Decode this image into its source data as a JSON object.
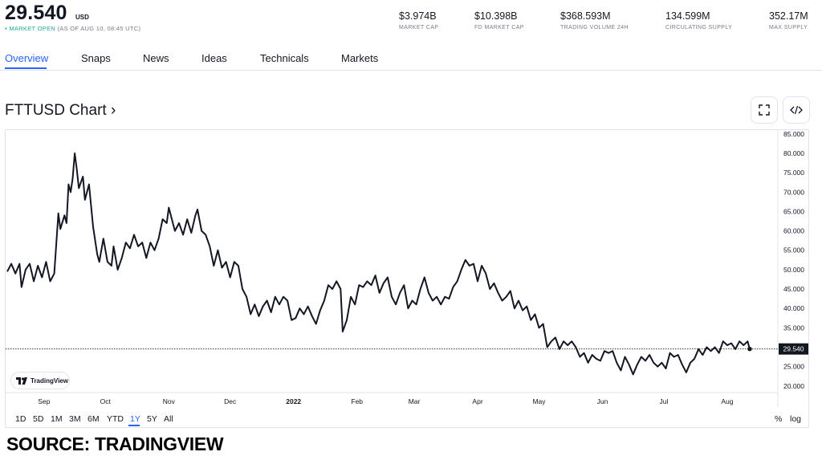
{
  "header": {
    "price": "29.540",
    "unit": "USD",
    "status_dot": "•",
    "status_open": "MARKET OPEN",
    "status_time": "(AS OF AUG 10, 08:45 UTC)",
    "stats": [
      {
        "value": "$3.974B",
        "label": "MARKET CAP"
      },
      {
        "value": "$10.398B",
        "label": "FD MARKET CAP"
      },
      {
        "value": "$368.593M",
        "label": "TRADING VOLUME 24H"
      },
      {
        "value": "134.599M",
        "label": "CIRCULATING SUPPLY"
      },
      {
        "value": "352.17M",
        "label": "MAX SUPPLY"
      }
    ]
  },
  "tabs": [
    "Overview",
    "Snaps",
    "News",
    "Ideas",
    "Technicals",
    "Markets"
  ],
  "active_tab": "Overview",
  "chart_title": "FTTUSD Chart ›",
  "toolbar": {
    "fullscreen_icon": "fullscreen-icon",
    "embed_icon": "code-icon"
  },
  "logo_text": "TradingView",
  "ranges": [
    "1D",
    "5D",
    "1M",
    "3M",
    "6M",
    "YTD",
    "1Y",
    "5Y",
    "All"
  ],
  "active_range": "1Y",
  "scale_buttons": {
    "percent": "%",
    "log": "log"
  },
  "source": "SOURCE: TRADINGVIEW",
  "colors": {
    "accent": "#2962ff",
    "line": "#131722",
    "open": "#22ab94",
    "price_tag_bg": "#131722"
  },
  "chart_data": {
    "type": "line",
    "title": "",
    "xlabel": "",
    "ylabel": "",
    "ylim": [
      18.5,
      86
    ],
    "grid": false,
    "y_ticks": [
      "85.000",
      "80.000",
      "75.000",
      "70.000",
      "65.000",
      "60.000",
      "55.000",
      "50.000",
      "45.000",
      "40.000",
      "35.000",
      "30.000",
      "25.000",
      "20.000"
    ],
    "x_labels": [
      {
        "label": "Sep",
        "day": 18
      },
      {
        "label": "Oct",
        "day": 48
      },
      {
        "label": "Nov",
        "day": 79
      },
      {
        "label": "Dec",
        "day": 109
      },
      {
        "label": "2022",
        "day": 140,
        "bold": true
      },
      {
        "label": "Feb",
        "day": 171
      },
      {
        "label": "Mar",
        "day": 199
      },
      {
        "label": "Apr",
        "day": 230
      },
      {
        "label": "May",
        "day": 260
      },
      {
        "label": "Jun",
        "day": 291
      },
      {
        "label": "Jul",
        "day": 321
      },
      {
        "label": "Aug",
        "day": 352
      }
    ],
    "last_price": 29.54,
    "last_price_label": "29.540",
    "series": [
      {
        "values": [
          [
            0,
            49.5
          ],
          [
            2,
            51.5
          ],
          [
            4,
            49.0
          ],
          [
            6,
            51.5
          ],
          [
            7,
            45.5
          ],
          [
            9,
            50.0
          ],
          [
            11,
            51.5
          ],
          [
            13,
            47.0
          ],
          [
            15,
            51.0
          ],
          [
            17,
            48.0
          ],
          [
            19,
            52.0
          ],
          [
            21,
            47.0
          ],
          [
            23,
            49.0
          ],
          [
            25,
            64.5
          ],
          [
            26,
            60.5
          ],
          [
            28,
            64.0
          ],
          [
            29,
            62.0
          ],
          [
            30,
            72.0
          ],
          [
            31,
            70.0
          ],
          [
            32,
            73.5
          ],
          [
            33,
            80.0
          ],
          [
            34,
            76.0
          ],
          [
            35,
            71.0
          ],
          [
            37,
            74.0
          ],
          [
            38,
            68.0
          ],
          [
            40,
            72.0
          ],
          [
            42,
            61.0
          ],
          [
            44,
            54.0
          ],
          [
            45,
            52.0
          ],
          [
            47,
            58.0
          ],
          [
            49,
            52.0
          ],
          [
            51,
            51.0
          ],
          [
            52,
            56.0
          ],
          [
            54,
            50.0
          ],
          [
            56,
            53.0
          ],
          [
            58,
            57.0
          ],
          [
            60,
            55.5
          ],
          [
            62,
            59.0
          ],
          [
            64,
            56.0
          ],
          [
            66,
            57.0
          ],
          [
            68,
            53.0
          ],
          [
            70,
            57.0
          ],
          [
            72,
            55.0
          ],
          [
            74,
            58.0
          ],
          [
            76,
            63.0
          ],
          [
            78,
            62.0
          ],
          [
            79,
            66.0
          ],
          [
            80,
            64.0
          ],
          [
            82,
            60.0
          ],
          [
            84,
            62.0
          ],
          [
            86,
            59.0
          ],
          [
            88,
            63.0
          ],
          [
            90,
            59.5
          ],
          [
            92,
            64.0
          ],
          [
            93,
            65.5
          ],
          [
            95,
            60.0
          ],
          [
            97,
            59.0
          ],
          [
            99,
            56.0
          ],
          [
            101,
            51.0
          ],
          [
            103,
            55.0
          ],
          [
            105,
            50.5
          ],
          [
            107,
            52.0
          ],
          [
            109,
            48.0
          ],
          [
            111,
            52.0
          ],
          [
            113,
            51.0
          ],
          [
            115,
            45.0
          ],
          [
            117,
            43.0
          ],
          [
            119,
            38.5
          ],
          [
            121,
            41.0
          ],
          [
            123,
            38.0
          ],
          [
            125,
            40.5
          ],
          [
            127,
            42.0
          ],
          [
            129,
            39.0
          ],
          [
            131,
            43.0
          ],
          [
            133,
            41.0
          ],
          [
            135,
            43.0
          ],
          [
            137,
            42.0
          ],
          [
            139,
            37.0
          ],
          [
            141,
            37.5
          ],
          [
            143,
            40.0
          ],
          [
            145,
            38.5
          ],
          [
            147,
            40.5
          ],
          [
            149,
            38.0
          ],
          [
            151,
            36.0
          ],
          [
            153,
            39.5
          ],
          [
            155,
            42.0
          ],
          [
            157,
            46.0
          ],
          [
            159,
            45.0
          ],
          [
            161,
            47.0
          ],
          [
            163,
            45.0
          ],
          [
            164,
            34.0
          ],
          [
            166,
            37.0
          ],
          [
            168,
            43.0
          ],
          [
            170,
            41.0
          ],
          [
            172,
            46.0
          ],
          [
            174,
            45.5
          ],
          [
            176,
            47.0
          ],
          [
            178,
            46.0
          ],
          [
            180,
            48.5
          ],
          [
            182,
            44.0
          ],
          [
            184,
            46.5
          ],
          [
            186,
            48.0
          ],
          [
            188,
            43.0
          ],
          [
            190,
            41.0
          ],
          [
            192,
            44.0
          ],
          [
            194,
            46.0
          ],
          [
            196,
            40.0
          ],
          [
            198,
            42.0
          ],
          [
            200,
            41.0
          ],
          [
            202,
            45.0
          ],
          [
            204,
            48.0
          ],
          [
            206,
            44.0
          ],
          [
            208,
            42.0
          ],
          [
            210,
            43.0
          ],
          [
            212,
            41.0
          ],
          [
            214,
            43.0
          ],
          [
            216,
            42.5
          ],
          [
            218,
            45.5
          ],
          [
            220,
            47.0
          ],
          [
            222,
            50.0
          ],
          [
            224,
            52.5
          ],
          [
            226,
            51.0
          ],
          [
            228,
            51.5
          ],
          [
            230,
            47.0
          ],
          [
            232,
            51.0
          ],
          [
            234,
            49.0
          ],
          [
            236,
            45.0
          ],
          [
            238,
            46.5
          ],
          [
            240,
            44.0
          ],
          [
            242,
            42.0
          ],
          [
            244,
            43.0
          ],
          [
            246,
            44.5
          ],
          [
            248,
            40.0
          ],
          [
            250,
            42.0
          ],
          [
            252,
            39.5
          ],
          [
            254,
            40.5
          ],
          [
            256,
            37.0
          ],
          [
            258,
            38.5
          ],
          [
            260,
            35.0
          ],
          [
            262,
            36.0
          ],
          [
            264,
            30.0
          ],
          [
            266,
            31.5
          ],
          [
            268,
            32.5
          ],
          [
            270,
            29.5
          ],
          [
            272,
            31.5
          ],
          [
            274,
            30.5
          ],
          [
            276,
            31.5
          ],
          [
            278,
            30.0
          ],
          [
            280,
            27.5
          ],
          [
            282,
            28.5
          ],
          [
            284,
            26.0
          ],
          [
            286,
            28.0
          ],
          [
            288,
            27.0
          ],
          [
            290,
            26.5
          ],
          [
            292,
            29.0
          ],
          [
            294,
            28.5
          ],
          [
            296,
            29.0
          ],
          [
            298,
            26.0
          ],
          [
            300,
            24.0
          ],
          [
            302,
            27.5
          ],
          [
            304,
            25.5
          ],
          [
            306,
            23.0
          ],
          [
            308,
            25.5
          ],
          [
            310,
            27.5
          ],
          [
            312,
            26.5
          ],
          [
            314,
            28.0
          ],
          [
            316,
            26.0
          ],
          [
            318,
            25.0
          ],
          [
            320,
            26.0
          ],
          [
            322,
            24.5
          ],
          [
            324,
            28.5
          ],
          [
            326,
            27.5
          ],
          [
            328,
            28.0
          ],
          [
            330,
            25.5
          ],
          [
            332,
            23.5
          ],
          [
            334,
            26.0
          ],
          [
            336,
            27.0
          ],
          [
            338,
            29.5
          ],
          [
            340,
            28.0
          ],
          [
            342,
            30.0
          ],
          [
            344,
            29.0
          ],
          [
            346,
            30.0
          ],
          [
            348,
            28.5
          ],
          [
            350,
            31.5
          ],
          [
            352,
            30.5
          ],
          [
            354,
            31.0
          ],
          [
            356,
            29.5
          ],
          [
            358,
            31.5
          ],
          [
            360,
            30.5
          ],
          [
            362,
            31.5
          ],
          [
            363,
            29.54
          ]
        ]
      }
    ]
  }
}
